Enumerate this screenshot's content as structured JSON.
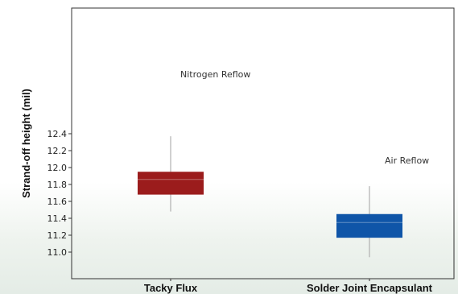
{
  "chart_data": {
    "type": "box",
    "ylabel": "Strand-off height (mil)",
    "xlabel": "",
    "ylim": [
      10.85,
      12.45
    ],
    "yticks": [
      11.0,
      11.2,
      11.4,
      11.6,
      11.8,
      12.0,
      12.2,
      12.4
    ],
    "categories": [
      "Tacky Flux",
      "Solder Joint Encapsulant"
    ],
    "boxes": [
      {
        "category": "Tacky Flux",
        "whisker_low": 11.48,
        "q1": 11.68,
        "median": 11.86,
        "q3": 11.95,
        "whisker_high": 12.37,
        "color": "#9b1c1c"
      },
      {
        "category": "Solder Joint Encapsulant",
        "whisker_low": 10.94,
        "q1": 11.17,
        "median": 11.35,
        "q3": 11.45,
        "whisker_high": 11.78,
        "color": "#0f55a8"
      }
    ],
    "annotations": [
      "Nitrogen Reflow",
      "Air Reflow"
    ],
    "grid": false
  }
}
